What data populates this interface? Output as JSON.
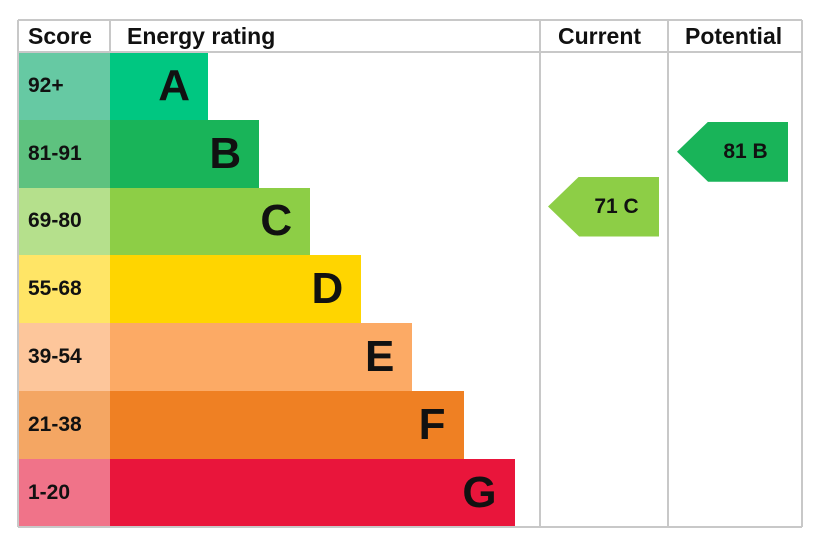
{
  "chart_data": {
    "type": "bar",
    "title": "",
    "headers": {
      "score": "Score",
      "rating": "Energy rating",
      "current": "Current",
      "potential": "Potential"
    },
    "bands": [
      {
        "letter": "A",
        "range": "92+",
        "color": "#00c781",
        "light": "#66c9a3"
      },
      {
        "letter": "B",
        "range": "81-91",
        "color": "#19b459",
        "light": "#5ec27f"
      },
      {
        "letter": "C",
        "range": "69-80",
        "color": "#8dce46",
        "light": "#b5e08c"
      },
      {
        "letter": "D",
        "range": "55-68",
        "color": "#ffd500",
        "light": "#ffe566"
      },
      {
        "letter": "E",
        "range": "39-54",
        "color": "#fcaa65",
        "light": "#fdc69b"
      },
      {
        "letter": "F",
        "range": "21-38",
        "color": "#ef8023",
        "light": "#f4a663"
      },
      {
        "letter": "G",
        "range": "1-20",
        "color": "#e9153b",
        "light": "#f07389"
      }
    ],
    "current": {
      "score": 71,
      "band": "C",
      "label": "71 C",
      "color": "#8dce46"
    },
    "potential": {
      "score": 81,
      "band": "B",
      "label": "81 B",
      "color": "#19b459"
    }
  }
}
